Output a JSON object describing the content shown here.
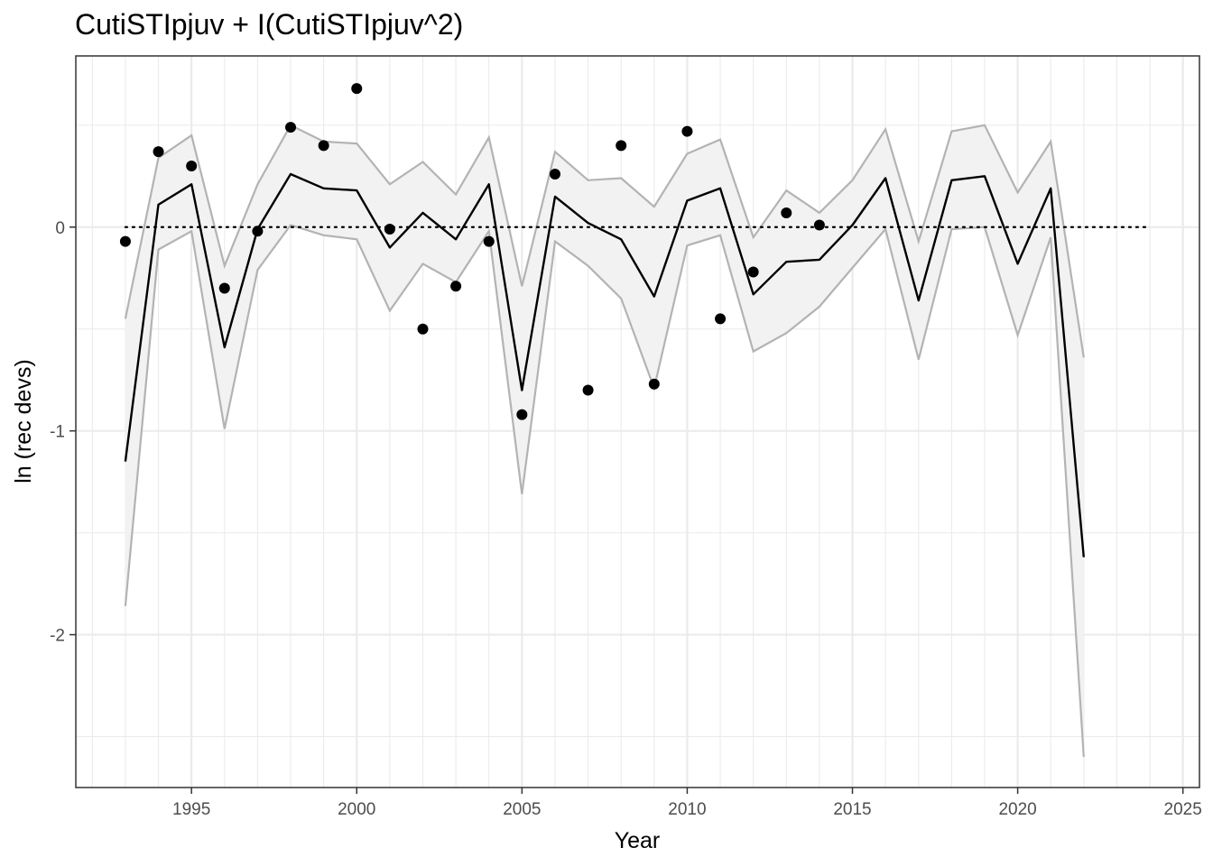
{
  "chart_data": {
    "type": "line",
    "title": "CutiSTIpjuv + I(CutiSTIpjuv^2)",
    "xlabel": "Year",
    "ylabel": "ln (rec devs)",
    "xlim": [
      1991.5,
      2025.5
    ],
    "ylim": [
      -2.75,
      0.84
    ],
    "x_ticks": [
      1995,
      2000,
      2005,
      2010,
      2015,
      2020,
      2025
    ],
    "x_tick_labels": [
      "1995",
      "2000",
      "2005",
      "2010",
      "2015",
      "2020",
      "2025"
    ],
    "y_ticks": [
      -2,
      -1,
      0
    ],
    "y_tick_labels": [
      "-2",
      "-1",
      "0"
    ],
    "grid": true,
    "reference_line": {
      "y": 0,
      "x_from": 1993,
      "x_to": 2024,
      "style": "dotted"
    },
    "colors": {
      "fit": "#000000",
      "band_edge": "#b3b3b3",
      "band_fill": "#f2f2f2",
      "points": "#000000",
      "grid": "#ebebeb"
    },
    "years": [
      1993,
      1994,
      1995,
      1996,
      1997,
      1998,
      1999,
      2000,
      2001,
      2002,
      2003,
      2004,
      2005,
      2006,
      2007,
      2008,
      2009,
      2010,
      2011,
      2012,
      2013,
      2014,
      2015,
      2016,
      2017,
      2018,
      2019,
      2020,
      2021,
      2022
    ],
    "fit": [
      -1.15,
      0.11,
      0.21,
      -0.59,
      -0.01,
      0.26,
      0.19,
      0.18,
      -0.1,
      0.07,
      -0.06,
      0.21,
      -0.8,
      0.15,
      0.02,
      -0.06,
      -0.34,
      0.13,
      0.19,
      -0.33,
      -0.17,
      -0.16,
      0.01,
      0.24,
      -0.36,
      0.23,
      0.25,
      -0.18,
      0.19,
      -1.62
    ],
    "upper": [
      -0.45,
      0.34,
      0.45,
      -0.19,
      0.21,
      0.5,
      0.42,
      0.41,
      0.21,
      0.32,
      0.16,
      0.44,
      -0.29,
      0.37,
      0.23,
      0.24,
      0.1,
      0.36,
      0.43,
      -0.05,
      0.18,
      0.07,
      0.23,
      0.48,
      -0.07,
      0.47,
      0.5,
      0.17,
      0.42,
      -0.64
    ],
    "lower": [
      -1.86,
      -0.11,
      -0.02,
      -0.99,
      -0.21,
      0.01,
      -0.04,
      -0.06,
      -0.41,
      -0.18,
      -0.27,
      -0.02,
      -1.31,
      -0.07,
      -0.19,
      -0.35,
      -0.79,
      -0.09,
      -0.04,
      -0.61,
      -0.52,
      -0.39,
      -0.2,
      -0.01,
      -0.65,
      -0.01,
      0.0,
      -0.53,
      -0.05,
      -2.6
    ],
    "points": {
      "x": [
        1993,
        1994,
        1995,
        1996,
        1997,
        1998,
        1999,
        2000,
        2001,
        2002,
        2003,
        2004,
        2005,
        2006,
        2007,
        2008,
        2009,
        2010,
        2011,
        2012,
        2013,
        2014
      ],
      "y": [
        -0.07,
        0.37,
        0.3,
        -0.3,
        -0.02,
        0.49,
        0.4,
        0.68,
        -0.01,
        -0.5,
        -0.29,
        -0.07,
        -0.92,
        0.26,
        -0.8,
        0.4,
        -0.77,
        0.47,
        -0.45,
        -0.22,
        0.07,
        0.01
      ]
    }
  }
}
